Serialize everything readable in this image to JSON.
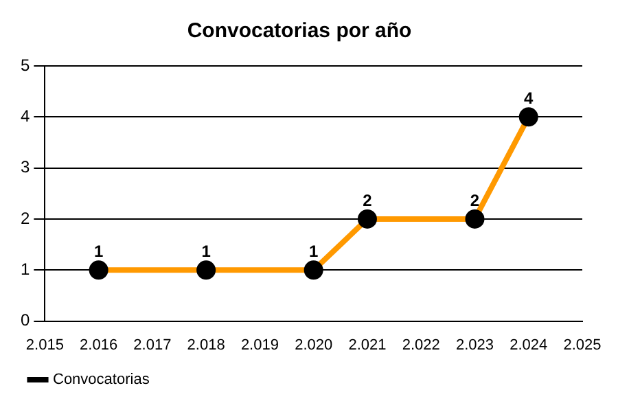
{
  "chart_data": {
    "type": "line",
    "title": "Convocatorias por año",
    "x": [
      2016,
      2018,
      2020,
      2021,
      2023,
      2024
    ],
    "series": [
      {
        "name": "Convocatorias",
        "color": "#ff9900",
        "values": [
          1,
          1,
          1,
          2,
          2,
          4
        ]
      }
    ],
    "xlim": [
      2015,
      2025
    ],
    "xticks": [
      {
        "value": 2015,
        "label": "2.015"
      },
      {
        "value": 2016,
        "label": "2.016"
      },
      {
        "value": 2017,
        "label": "2.017"
      },
      {
        "value": 2018,
        "label": "2.018"
      },
      {
        "value": 2019,
        "label": "2.019"
      },
      {
        "value": 2020,
        "label": "2.020"
      },
      {
        "value": 2021,
        "label": "2.021"
      },
      {
        "value": 2022,
        "label": "2.022"
      },
      {
        "value": 2023,
        "label": "2.023"
      },
      {
        "value": 2024,
        "label": "2.024"
      },
      {
        "value": 2025,
        "label": "2.025"
      }
    ],
    "ylim": [
      0,
      5
    ],
    "yticks": [
      0,
      1,
      2,
      3,
      4,
      5
    ],
    "grid": "y",
    "legend": "bottom left",
    "marker": "circle",
    "line_style": "solid",
    "data_labels": true
  }
}
